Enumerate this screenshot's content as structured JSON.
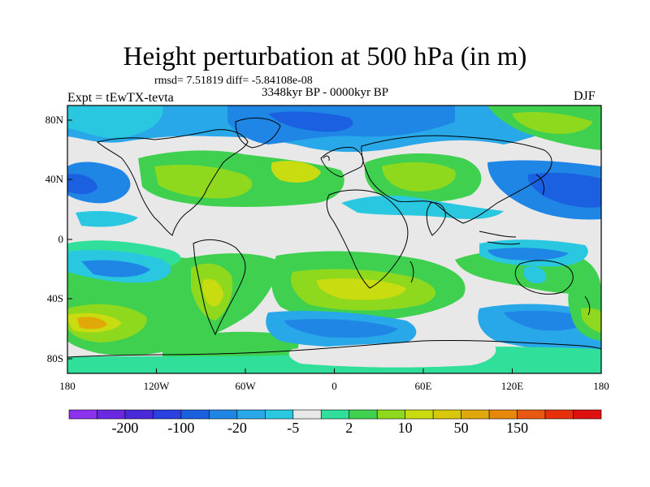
{
  "title": "Height perturbation at 500 hPa (in m)",
  "stats": "rmsd= 7.51819 diff= -5.84108e-08",
  "period": "3348kyr BP - 0000kyr BP",
  "experiment": "Expt = tEwTX-tevta",
  "season": "DJF",
  "map": {
    "lon_ticks": [
      "180",
      "120W",
      "60W",
      "0",
      "60E",
      "120E",
      "180"
    ],
    "lat_ticks": [
      "80N",
      "40N",
      "0",
      "40S",
      "80S"
    ]
  },
  "colorbar": {
    "colors": [
      "#8c30f0",
      "#6a28e0",
      "#4a2ad8",
      "#2a40e0",
      "#1a60e0",
      "#1f86e6",
      "#28a8e8",
      "#2ac8e0",
      "#e8e8e8",
      "#30e09a",
      "#40d050",
      "#8ed81e",
      "#c8dc10",
      "#d8c80c",
      "#e0a808",
      "#e88808",
      "#e85810",
      "#e8300c",
      "#e01010"
    ],
    "labels": [
      "-200",
      "-100",
      "-20",
      "-5",
      "2",
      "10",
      "50",
      "150"
    ]
  },
  "palette": {
    "background": "#e8e8e8",
    "green": "#40d050",
    "teal": "#30e09a",
    "lime": "#8ed81e",
    "yellow": "#c8dc10",
    "orange": "#e0a808",
    "cyan": "#2ac8e0",
    "lightblue": "#28a8e8",
    "blue": "#1f86e6",
    "darkblue": "#1a60e0"
  }
}
